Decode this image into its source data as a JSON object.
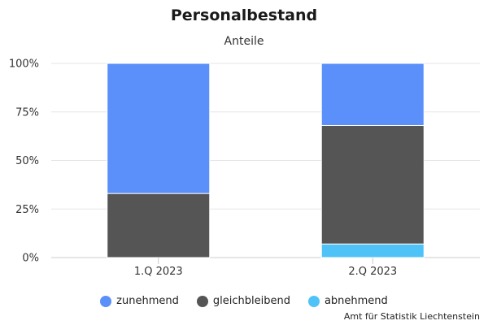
{
  "chart_data": {
    "type": "bar",
    "stacked": true,
    "title": "Personalbestand",
    "subtitle": "Anteile",
    "categories": [
      "1.Q 2023",
      "2.Q 2023"
    ],
    "series": [
      {
        "name": "abnehmend",
        "color": "#4fc3f7",
        "values": [
          0,
          7
        ]
      },
      {
        "name": "gleichbleibend",
        "color": "#555555",
        "values": [
          33,
          61
        ]
      },
      {
        "name": "zunehmend",
        "color": "#5b8ff9",
        "values": [
          67,
          32
        ]
      }
    ],
    "ylim": [
      0,
      100
    ],
    "yticks": [
      "0%",
      "25%",
      "50%",
      "75%",
      "100%"
    ],
    "ytick_values": [
      0,
      25,
      50,
      75,
      100
    ],
    "grid": true,
    "legend": {
      "position": "bottom",
      "items": [
        {
          "label": "zunehmend",
          "color": "#5b8ff9"
        },
        {
          "label": "gleichbleibend",
          "color": "#555555"
        },
        {
          "label": "abnehmend",
          "color": "#4fc3f7"
        }
      ]
    },
    "credit": "Amt für Statistik Liechtenstein"
  }
}
